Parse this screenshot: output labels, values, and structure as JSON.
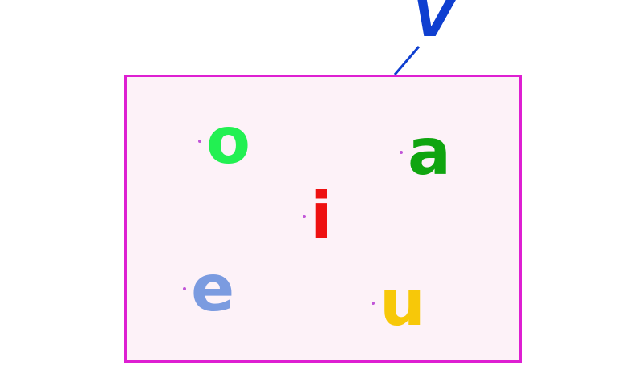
{
  "set": {
    "label": "V",
    "label_color": "#0f3fd0",
    "border_color": "#de1fd2",
    "fill_color": "#fdf2f8"
  },
  "elements": [
    {
      "key": "o",
      "text": "o",
      "color": "#22f052"
    },
    {
      "key": "a",
      "text": "a",
      "color": "#10a510"
    },
    {
      "key": "i",
      "text": "i",
      "color": "#ee1111"
    },
    {
      "key": "e",
      "text": "e",
      "color": "#7b9be0"
    },
    {
      "key": "u",
      "text": "u",
      "color": "#f7c809"
    }
  ]
}
